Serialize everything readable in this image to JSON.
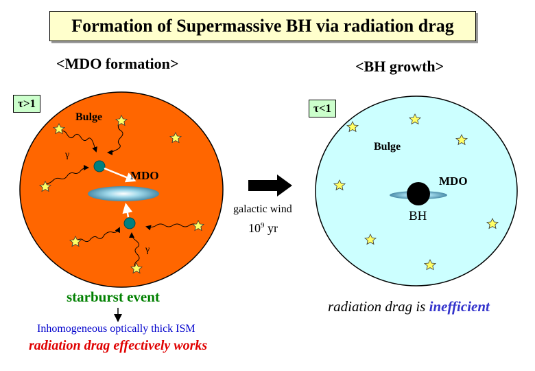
{
  "title": "Formation of Supermassive BH via radiation drag",
  "left_panel": {
    "heading": "<MDO formation>",
    "optical_depth": "τ>1",
    "bulge_label": "Bulge",
    "mdo_label": "MDO",
    "photon_label": "γ",
    "event_label": "starburst event",
    "ism_text": "Inhomogeneous optically thick ISM",
    "conclusion": "radiation drag effectively works",
    "colors": {
      "bulge_fill": "#ff6600",
      "event": "#008000",
      "ism": "#0000cc",
      "conclusion": "#e00000"
    }
  },
  "transition": {
    "wind_label": "galactic wind",
    "timescale_prefix": "",
    "timescale_value": "10",
    "timescale_exp": "9",
    "timescale_unit": "yr"
  },
  "right_panel": {
    "heading": "<BH growth>",
    "optical_depth": "τ<1",
    "bulge_label": "Bulge",
    "mdo_label": "MDO",
    "bh_label": "BH",
    "conclusion_prefix": "radiation drag is ",
    "conclusion_emphasis": "inefficient",
    "colors": {
      "bulge_fill": "#ccffff",
      "emphasis": "#3333cc"
    }
  }
}
